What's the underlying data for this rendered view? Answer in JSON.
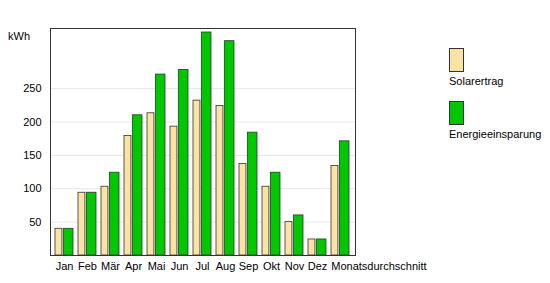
{
  "chart_data": {
    "type": "bar",
    "y_label": "kWh",
    "categories": [
      "Jan",
      "Feb",
      "Mär",
      "Apr",
      "Mai",
      "Jun",
      "Jul",
      "Aug",
      "Sep",
      "Okt",
      "Nov",
      "Dez",
      "Monatsdurchschnitt"
    ],
    "series": [
      {
        "name": "Solarertrag",
        "color": "#fae3a3",
        "values": [
          40,
          94,
          103,
          179,
          213,
          193,
          232,
          224,
          137,
          103,
          50,
          24,
          134
        ]
      },
      {
        "name": "Energieeinsparung",
        "color": "#00c800",
        "values": [
          40,
          94,
          124,
          210,
          271,
          278,
          334,
          321,
          184,
          124,
          60,
          24,
          171
        ]
      }
    ],
    "ylim": [
      0,
      340
    ],
    "yticks": [
      50,
      100,
      150,
      200,
      250
    ],
    "grid": true,
    "legend": "right"
  }
}
